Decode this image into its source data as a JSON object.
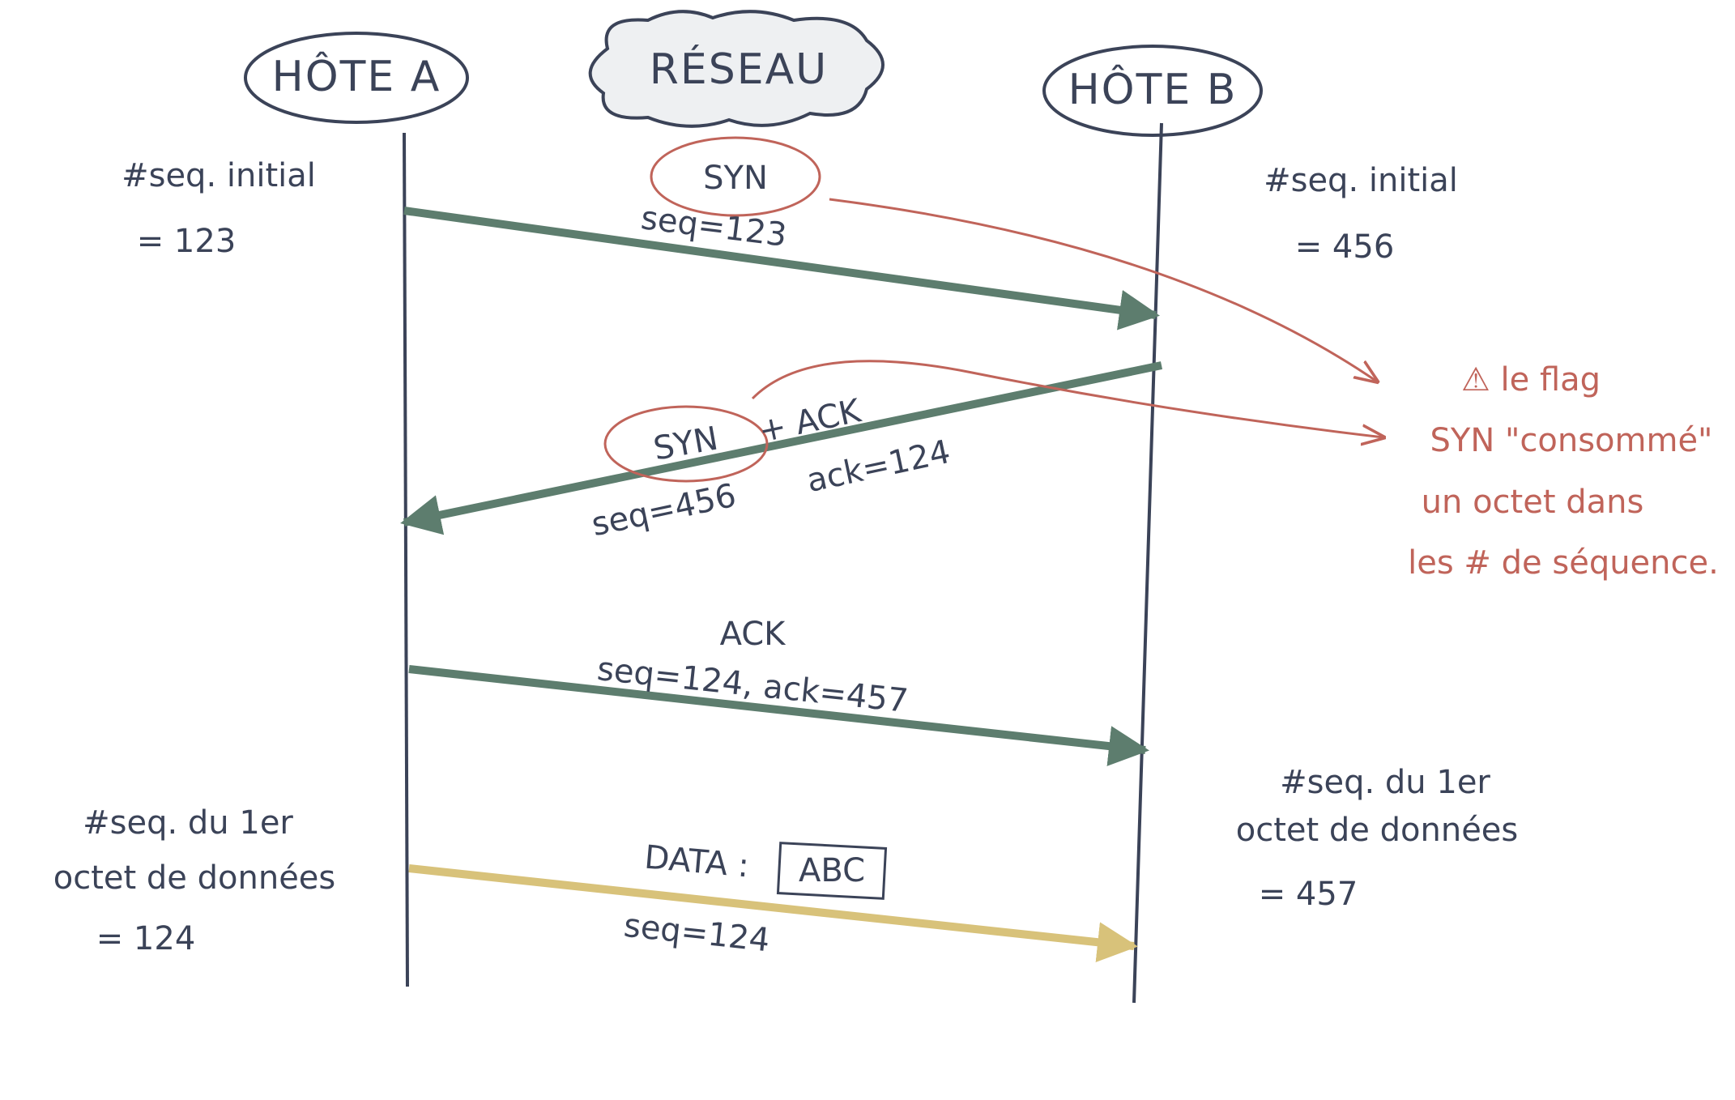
{
  "columns": {
    "host_a": "HÔTE A",
    "network": "RÉSEAU",
    "host_b": "HÔTE B"
  },
  "notes": {
    "host_a_initial": [
      "#seq. initial",
      "= 123"
    ],
    "host_b_initial": [
      "#seq. initial",
      "= 456"
    ],
    "host_a_first_byte": [
      "#seq. du 1er",
      "octet de données",
      "= 124"
    ],
    "host_b_first_byte": [
      "#seq. du 1er",
      "octet de données",
      "= 457"
    ]
  },
  "messages": [
    {
      "label": "SYN",
      "detail": "seq=123"
    },
    {
      "label": "SYN",
      "extra": "+ ACK",
      "seq": "seq=456",
      "ack": "ack=124"
    },
    {
      "label": "ACK",
      "detail": "seq=124, ack=457"
    },
    {
      "label": "DATA :",
      "payload": "ABC",
      "detail": "seq=124"
    }
  ],
  "annotation": [
    "⚠ le flag",
    "SYN \"consommé\"",
    "un octet dans",
    "les # de séquence."
  ]
}
